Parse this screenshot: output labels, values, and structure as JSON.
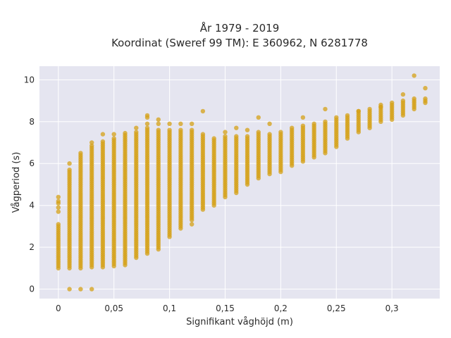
{
  "chart_data": {
    "type": "scatter",
    "title_line1": "År 1979 - 2019",
    "title_line2": "Koordinat (Sweref 99 TM): E 360962, N 6281778",
    "xlabel": "Signifikant våghöjd (m)",
    "ylabel": "Vågperiod (s)",
    "xlim": [
      -0.017,
      0.343
    ],
    "ylim": [
      -0.45,
      10.65
    ],
    "xticks": [
      0,
      0.05,
      0.1,
      0.15,
      0.2,
      0.25,
      0.3
    ],
    "xtick_labels": [
      "0",
      "0,05",
      "0,1",
      "0,15",
      "0,2",
      "0,25",
      "0,3"
    ],
    "yticks": [
      0,
      2,
      4,
      6,
      8,
      10
    ],
    "ytick_labels": [
      "0",
      "2",
      "4",
      "6",
      "8",
      "10"
    ],
    "grid": true,
    "plot_background": "#e5e5f0",
    "marker_color": "#d4a017",
    "series": [
      {
        "x": [
          0,
          0.01,
          0.02,
          0.03,
          0.04,
          0.05,
          0.06,
          0.07,
          0.08,
          0.09,
          0.1,
          0.11,
          0.12,
          0.13,
          0.14,
          0.15,
          0.16,
          0.17,
          0.18,
          0.19,
          0.2,
          0.21,
          0.22,
          0.23,
          0.24,
          0.25,
          0.26,
          0.27,
          0.28,
          0.29,
          0.3,
          0.31,
          0.32,
          0.33
        ],
        "y_min": [
          1.0,
          1.0,
          1.0,
          1.05,
          1.05,
          1.1,
          1.15,
          1.5,
          1.7,
          1.9,
          2.5,
          2.9,
          3.3,
          3.8,
          4.0,
          4.4,
          4.6,
          5.0,
          5.3,
          5.5,
          5.6,
          5.9,
          6.1,
          6.3,
          6.5,
          6.8,
          7.2,
          7.5,
          7.7,
          8.0,
          8.1,
          8.3,
          8.6,
          8.9
        ],
        "y_max": [
          3.1,
          5.7,
          6.4,
          6.9,
          7.1,
          7.2,
          7.5,
          7.5,
          7.6,
          7.6,
          7.6,
          7.6,
          7.6,
          7.3,
          7.2,
          7.3,
          7.3,
          7.3,
          7.5,
          7.4,
          7.5,
          7.6,
          7.8,
          7.9,
          8.0,
          8.2,
          8.3,
          8.5,
          8.6,
          8.8,
          8.9,
          9.0,
          9.1,
          9.1
        ],
        "outliers": [
          [
            0,
            4.4
          ],
          [
            0,
            4.2
          ],
          [
            0,
            4.1
          ],
          [
            0,
            3.9
          ],
          [
            0,
            3.7
          ],
          [
            0.01,
            6.0
          ],
          [
            0.01,
            0
          ],
          [
            0.02,
            0
          ],
          [
            0.03,
            0
          ],
          [
            0.02,
            6.5
          ],
          [
            0.03,
            7.0
          ],
          [
            0.04,
            7.4
          ],
          [
            0.05,
            7.4
          ],
          [
            0.07,
            7.7
          ],
          [
            0.08,
            8.3
          ],
          [
            0.08,
            8.2
          ],
          [
            0.08,
            7.9
          ],
          [
            0.08,
            7.7
          ],
          [
            0.09,
            8.1
          ],
          [
            0.09,
            7.9
          ],
          [
            0.1,
            7.9
          ],
          [
            0.11,
            7.9
          ],
          [
            0.12,
            7.9
          ],
          [
            0.13,
            8.5
          ],
          [
            0.12,
            3.1
          ],
          [
            0.13,
            7.4
          ],
          [
            0.15,
            7.5
          ],
          [
            0.16,
            7.7
          ],
          [
            0.17,
            7.6
          ],
          [
            0.18,
            8.2
          ],
          [
            0.19,
            7.9
          ],
          [
            0.21,
            7.7
          ],
          [
            0.22,
            8.2
          ],
          [
            0.24,
            8.6
          ],
          [
            0.27,
            8.5
          ],
          [
            0.29,
            8.7
          ],
          [
            0.31,
            9.3
          ],
          [
            0.32,
            10.2
          ],
          [
            0.33,
            9.6
          ]
        ]
      }
    ]
  }
}
